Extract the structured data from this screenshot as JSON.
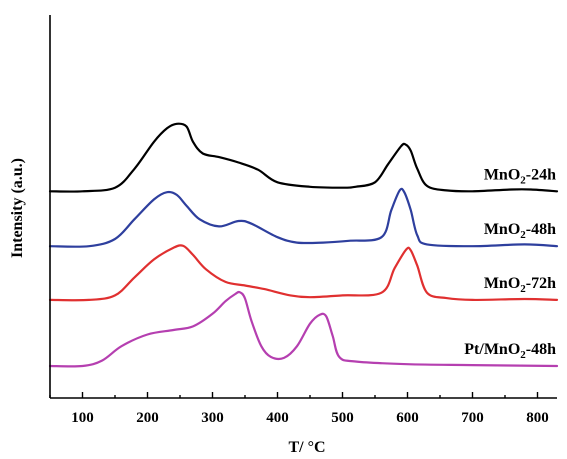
{
  "chart_data": {
    "type": "line",
    "title": "",
    "xlabel": "T/ °C",
    "ylabel": "Intensity (a.u.)",
    "xlim": [
      50,
      830
    ],
    "xticks": [
      100,
      200,
      300,
      400,
      500,
      600,
      700,
      800
    ],
    "tick_labels": [
      "100",
      "200",
      "300",
      "400",
      "500",
      "600",
      "700",
      "800"
    ],
    "y_ticks_shown": false,
    "grid": false,
    "legend": "labels beside curves, right side",
    "series": [
      {
        "name": "MnO2-24h",
        "label_parts": [
          "MnO",
          "2",
          "-24h"
        ],
        "color": "#000000",
        "baseline": 0.78,
        "points": [
          [
            50,
            0
          ],
          [
            100,
            0
          ],
          [
            150,
            0.04
          ],
          [
            180,
            0.25
          ],
          [
            210,
            0.55
          ],
          [
            230,
            0.7
          ],
          [
            245,
            0.75
          ],
          [
            260,
            0.72
          ],
          [
            270,
            0.55
          ],
          [
            285,
            0.42
          ],
          [
            310,
            0.38
          ],
          [
            340,
            0.32
          ],
          [
            370,
            0.24
          ],
          [
            400,
            0.1
          ],
          [
            450,
            0.05
          ],
          [
            500,
            0.04
          ],
          [
            520,
            0.05
          ],
          [
            550,
            0.1
          ],
          [
            570,
            0.3
          ],
          [
            590,
            0.5
          ],
          [
            597,
            0.52
          ],
          [
            605,
            0.45
          ],
          [
            615,
            0.25
          ],
          [
            630,
            0.06
          ],
          [
            660,
            0.01
          ],
          [
            700,
            0
          ],
          [
            760,
            0.02
          ],
          [
            790,
            0.02
          ],
          [
            830,
            0
          ]
        ]
      },
      {
        "name": "MnO2-48h",
        "label_parts": [
          "MnO",
          "2",
          "-48h"
        ],
        "color": "#2e3f9e",
        "baseline": 0.535,
        "points": [
          [
            50,
            0
          ],
          [
            110,
            0
          ],
          [
            150,
            0.08
          ],
          [
            180,
            0.3
          ],
          [
            210,
            0.52
          ],
          [
            230,
            0.6
          ],
          [
            245,
            0.57
          ],
          [
            260,
            0.45
          ],
          [
            280,
            0.3
          ],
          [
            310,
            0.22
          ],
          [
            340,
            0.28
          ],
          [
            360,
            0.25
          ],
          [
            400,
            0.1
          ],
          [
            430,
            0.04
          ],
          [
            470,
            0.04
          ],
          [
            510,
            0.06
          ],
          [
            560,
            0.1
          ],
          [
            575,
            0.4
          ],
          [
            588,
            0.62
          ],
          [
            595,
            0.6
          ],
          [
            605,
            0.4
          ],
          [
            615,
            0.12
          ],
          [
            630,
            0.02
          ],
          [
            700,
            0
          ],
          [
            780,
            0.02
          ],
          [
            830,
            0
          ]
        ]
      },
      {
        "name": "MnO2-72h",
        "label_parts": [
          "MnO",
          "2",
          "-72h"
        ],
        "color": "#e03030",
        "baseline": 0.295,
        "points": [
          [
            50,
            0
          ],
          [
            110,
            0
          ],
          [
            150,
            0.05
          ],
          [
            180,
            0.25
          ],
          [
            210,
            0.45
          ],
          [
            240,
            0.58
          ],
          [
            255,
            0.6
          ],
          [
            270,
            0.5
          ],
          [
            290,
            0.34
          ],
          [
            320,
            0.2
          ],
          [
            350,
            0.16
          ],
          [
            380,
            0.12
          ],
          [
            420,
            0.05
          ],
          [
            450,
            0.03
          ],
          [
            500,
            0.05
          ],
          [
            560,
            0.08
          ],
          [
            580,
            0.35
          ],
          [
            598,
            0.56
          ],
          [
            605,
            0.55
          ],
          [
            615,
            0.38
          ],
          [
            630,
            0.08
          ],
          [
            660,
            0.02
          ],
          [
            700,
            0
          ],
          [
            780,
            0.01
          ],
          [
            830,
            0
          ]
        ]
      },
      {
        "name": "Pt/MnO2-48h",
        "label_parts": [
          "Pt/MnO",
          "2",
          "-48h"
        ],
        "color": "#b53fb0",
        "baseline": 0,
        "points": [
          [
            50,
            0
          ],
          [
            100,
            0
          ],
          [
            130,
            0.06
          ],
          [
            160,
            0.22
          ],
          [
            200,
            0.35
          ],
          [
            240,
            0.4
          ],
          [
            270,
            0.44
          ],
          [
            300,
            0.58
          ],
          [
            320,
            0.72
          ],
          [
            335,
            0.8
          ],
          [
            342,
            0.82
          ],
          [
            350,
            0.75
          ],
          [
            360,
            0.5
          ],
          [
            375,
            0.22
          ],
          [
            390,
            0.1
          ],
          [
            410,
            0.09
          ],
          [
            430,
            0.22
          ],
          [
            450,
            0.47
          ],
          [
            465,
            0.57
          ],
          [
            475,
            0.55
          ],
          [
            485,
            0.33
          ],
          [
            495,
            0.1
          ],
          [
            520,
            0.05
          ],
          [
            600,
            0.02
          ],
          [
            700,
            0.01
          ],
          [
            830,
            0
          ]
        ]
      }
    ]
  }
}
